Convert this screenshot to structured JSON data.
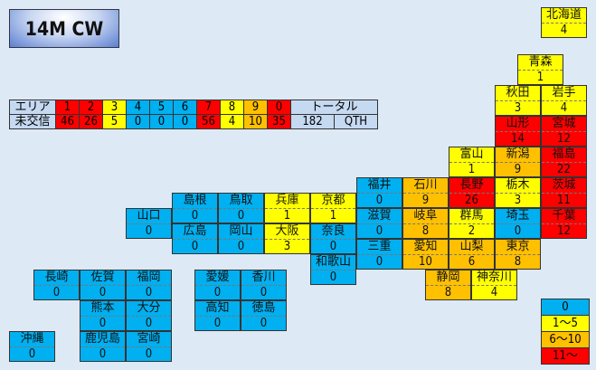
{
  "title": "14M CW",
  "colors": {
    "zero": "#00b0f0",
    "low": "#ffff00",
    "mid": "#ffc000",
    "high": "#ff0000",
    "total": "#c5d9f1"
  },
  "area_table": {
    "row1_label": "エリア",
    "row2_label": "未交信",
    "areas": [
      "1",
      "2",
      "3",
      "4",
      "5",
      "6",
      "7",
      "8",
      "9",
      "0"
    ],
    "counts": [
      46,
      26,
      5,
      0,
      0,
      0,
      56,
      4,
      10,
      35
    ],
    "total_label": "トータル",
    "total": "182",
    "qth": "QTH"
  },
  "prefectures": [
    {
      "name": "北海道",
      "value": 4
    },
    {
      "name": "青森",
      "value": 1
    },
    {
      "name": "秋田",
      "value": 3
    },
    {
      "name": "岩手",
      "value": 4
    },
    {
      "name": "山形",
      "value": 14
    },
    {
      "name": "宮城",
      "value": 12
    },
    {
      "name": "富山",
      "value": 1
    },
    {
      "name": "新潟",
      "value": 9
    },
    {
      "name": "福島",
      "value": 22
    },
    {
      "name": "福井",
      "value": 0
    },
    {
      "name": "石川",
      "value": 9
    },
    {
      "name": "長野",
      "value": 26
    },
    {
      "name": "栃木",
      "value": 3
    },
    {
      "name": "茨城",
      "value": 11
    },
    {
      "name": "滋賀",
      "value": 0
    },
    {
      "name": "岐阜",
      "value": 8
    },
    {
      "name": "群馬",
      "value": 2
    },
    {
      "name": "埼玉",
      "value": 0
    },
    {
      "name": "千葉",
      "value": 12
    },
    {
      "name": "三重",
      "value": 0
    },
    {
      "name": "愛知",
      "value": 10
    },
    {
      "name": "山梨",
      "value": 6
    },
    {
      "name": "東京",
      "value": 8
    },
    {
      "name": "静岡",
      "value": 8
    },
    {
      "name": "神奈川",
      "value": 4
    },
    {
      "name": "兵庫",
      "value": 1
    },
    {
      "name": "京都",
      "value": 1
    },
    {
      "name": "大阪",
      "value": 3
    },
    {
      "name": "奈良",
      "value": 0
    },
    {
      "name": "和歌山",
      "value": 0
    },
    {
      "name": "島根",
      "value": 0
    },
    {
      "name": "鳥取",
      "value": 0
    },
    {
      "name": "広島",
      "value": 0
    },
    {
      "name": "岡山",
      "value": 0
    },
    {
      "name": "山口",
      "value": 0
    },
    {
      "name": "愛媛",
      "value": 0
    },
    {
      "name": "香川",
      "value": 0
    },
    {
      "name": "高知",
      "value": 0
    },
    {
      "name": "徳島",
      "value": 0
    },
    {
      "name": "長崎",
      "value": 0
    },
    {
      "name": "佐賀",
      "value": 0
    },
    {
      "name": "福岡",
      "value": 0
    },
    {
      "name": "熊本",
      "value": 0
    },
    {
      "name": "大分",
      "value": 0
    },
    {
      "name": "鹿児島",
      "value": 0
    },
    {
      "name": "宮崎",
      "value": 0
    },
    {
      "name": "沖縄",
      "value": 0
    }
  ],
  "legend": [
    "0",
    "1～5",
    "6～10",
    "11～"
  ]
}
